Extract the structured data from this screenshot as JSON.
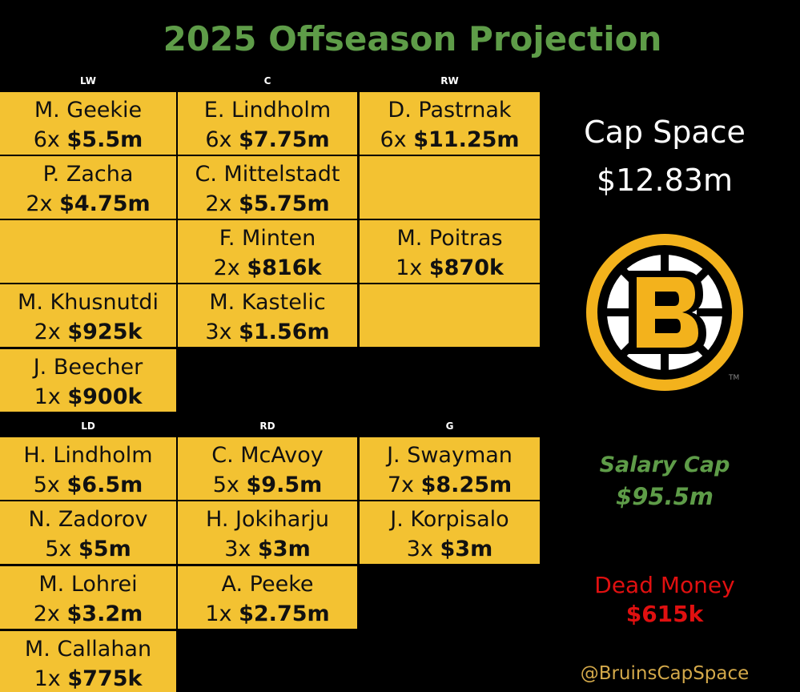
{
  "title": "2025 Offseason Projection",
  "forwards": {
    "headers": [
      "LW",
      "C",
      "RW"
    ],
    "rows": [
      [
        {
          "name": "M. Geekie",
          "years": "6x",
          "amount": "$5.5m"
        },
        {
          "name": "E. Lindholm",
          "years": "6x",
          "amount": "$7.75m"
        },
        {
          "name": "D. Pastrnak",
          "years": "6x",
          "amount": "$11.25m"
        }
      ],
      [
        {
          "name": "P. Zacha",
          "years": "2x",
          "amount": "$4.75m"
        },
        {
          "name": "C. Mittelstadt",
          "years": "2x",
          "amount": "$5.75m"
        },
        null
      ],
      [
        null,
        {
          "name": "F. Minten",
          "years": "2x",
          "amount": "$816k"
        },
        {
          "name": "M. Poitras",
          "years": "1x",
          "amount": "$870k"
        }
      ],
      [
        {
          "name": "M. Khusnutdi",
          "years": "2x",
          "amount": "$925k"
        },
        {
          "name": "M. Kastelic",
          "years": "3x",
          "amount": "$1.56m"
        },
        null
      ],
      [
        {
          "name": "J. Beecher",
          "years": "1x",
          "amount": "$900k"
        }
      ]
    ]
  },
  "defense": {
    "headers": [
      "LD",
      "RD",
      "G"
    ],
    "rows": [
      [
        {
          "name": "H. Lindholm",
          "years": "5x",
          "amount": "$6.5m"
        },
        {
          "name": "C. McAvoy",
          "years": "5x",
          "amount": "$9.5m"
        },
        {
          "name": "J. Swayman",
          "years": "7x",
          "amount": "$8.25m"
        }
      ],
      [
        {
          "name": "N. Zadorov",
          "years": "5x",
          "amount": "$5m"
        },
        {
          "name": "H. Jokiharju",
          "years": "3x",
          "amount": "$3m"
        },
        {
          "name": "J. Korpisalo",
          "years": "3x",
          "amount": "$3m"
        }
      ],
      [
        {
          "name": "M. Lohrei",
          "years": "2x",
          "amount": "$3.2m"
        },
        {
          "name": "A. Peeke",
          "years": "1x",
          "amount": "$2.75m"
        }
      ],
      [
        {
          "name": "M. Callahan",
          "years": "1x",
          "amount": "$775k"
        }
      ]
    ]
  },
  "cap_space": {
    "label": "Cap Space",
    "value": "$12.83m"
  },
  "salary_cap": {
    "label": "Salary Cap",
    "value": "$95.5m"
  },
  "dead_money": {
    "label": "Dead Money",
    "value": "$615k"
  },
  "handle": "@BruinsCapSpace"
}
